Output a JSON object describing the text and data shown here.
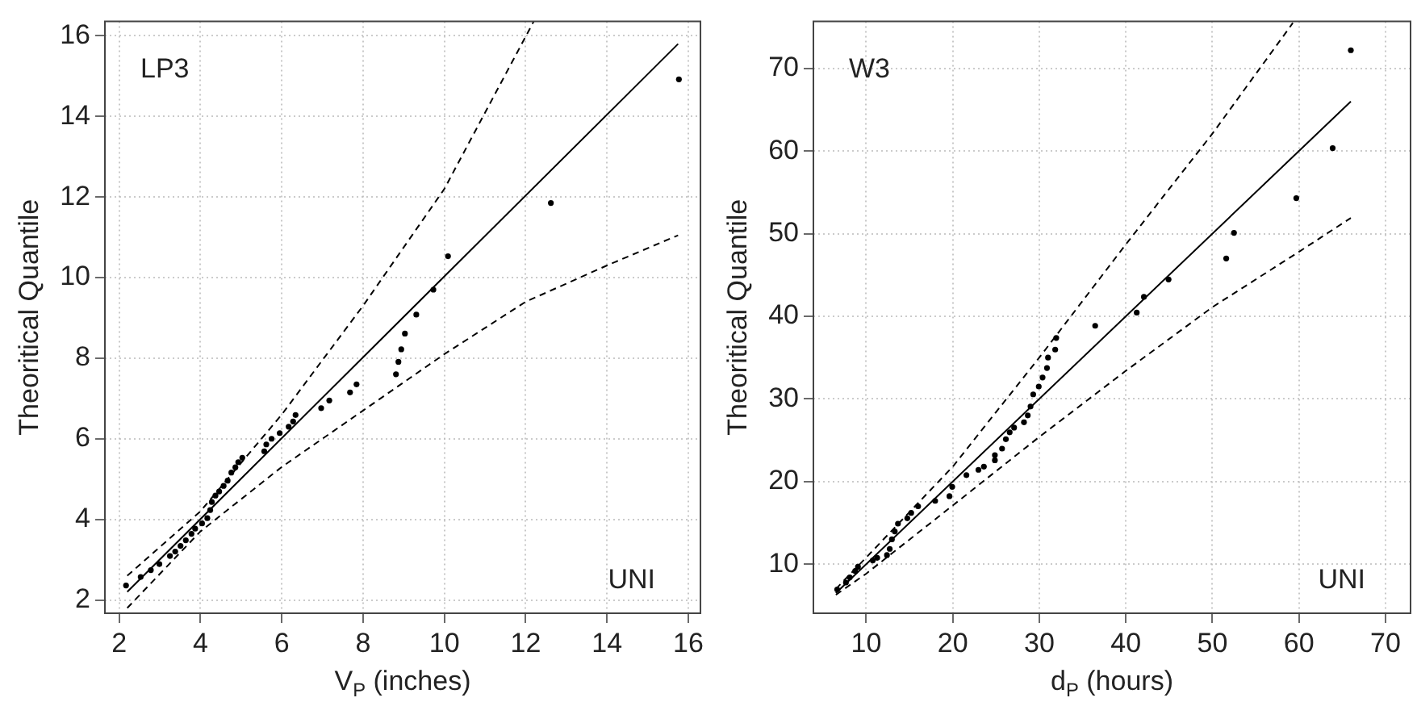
{
  "chart_data": [
    {
      "type": "scatter",
      "xlabel": "V$_{P}$ (inches)",
      "ylabel": "Theoritical Quantile",
      "xlim": [
        1.65,
        16.3
      ],
      "ylim": [
        1.67,
        16.36
      ],
      "xticks": [
        2,
        4,
        6,
        8,
        10,
        12,
        14,
        16
      ],
      "yticks": [
        2,
        4,
        6,
        8,
        10,
        12,
        14,
        16
      ],
      "grid": true,
      "legend": false,
      "annotations": [
        "LP3",
        "UNI"
      ],
      "series": [
        {
          "type": "scatter",
          "color": "#000000",
          "marker": "circle",
          "x": [
            2.17,
            2.53,
            2.78,
            2.99,
            3.25,
            3.38,
            3.51,
            3.64,
            3.78,
            3.87,
            4.04,
            4.17,
            4.24,
            4.28,
            4.37,
            4.46,
            4.57,
            4.67,
            4.76,
            4.86,
            4.93,
            5.03,
            5.57,
            5.62,
            5.75,
            5.95,
            6.17,
            6.28,
            6.34,
            6.97,
            7.17,
            7.68,
            7.84,
            8.81,
            8.87,
            8.94,
            9.03,
            9.31,
            9.73,
            10.09,
            12.62,
            15.77
          ],
          "values": [
            2.36,
            2.57,
            2.74,
            2.89,
            3.09,
            3.2,
            3.34,
            3.48,
            3.64,
            3.77,
            3.9,
            4.03,
            4.23,
            4.43,
            4.59,
            4.69,
            4.83,
            4.96,
            5.16,
            5.29,
            5.42,
            5.53,
            5.69,
            5.86,
            6.0,
            6.14,
            6.3,
            6.43,
            6.59,
            6.76,
            6.95,
            7.15,
            7.35,
            7.6,
            7.91,
            8.22,
            8.61,
            9.08,
            9.7,
            10.53,
            11.85,
            14.92
          ]
        },
        {
          "type": "line",
          "color": "#000000",
          "line_style": "solid",
          "marker": "none",
          "x": [
            2.2,
            15.75
          ],
          "values": [
            2.2,
            15.8
          ]
        },
        {
          "type": "line",
          "color": "#000000",
          "line_style": "dashed",
          "marker": "none",
          "x": [
            2.2,
            4,
            6,
            8,
            10,
            12.2
          ],
          "values": [
            2.6,
            4.2,
            6.6,
            9.3,
            12.2,
            16.36
          ]
        },
        {
          "type": "line",
          "color": "#000000",
          "line_style": "dashed",
          "marker": "none",
          "x": [
            2.2,
            4,
            6,
            8,
            10,
            12,
            14,
            15.75
          ],
          "values": [
            1.8,
            3.7,
            5.3,
            6.7,
            8.1,
            9.4,
            10.3,
            11.05
          ]
        }
      ]
    },
    {
      "type": "scatter",
      "xlabel": "d$_{P}$ (hours)",
      "ylabel": "Theoritical Quantile",
      "xlim": [
        3.9,
        72.9
      ],
      "ylim": [
        4.06,
        75.7
      ],
      "xticks": [
        10,
        20,
        30,
        40,
        50,
        60,
        70
      ],
      "yticks": [
        10,
        20,
        30,
        40,
        50,
        60,
        70
      ],
      "grid": true,
      "legend": false,
      "annotations": [
        "W3",
        "UNI"
      ],
      "series": [
        {
          "type": "scatter",
          "color": "#000000",
          "marker": "circle",
          "x": [
            6.65,
            7.66,
            8.1,
            8.73,
            9.05,
            10.76,
            11.27,
            12.4,
            12.72,
            12.97,
            13.3,
            13.67,
            14.75,
            15.2,
            16.0,
            17.97,
            19.62,
            19.94,
            21.58,
            22.97,
            23.6,
            24.87,
            24.87,
            25.7,
            26.14,
            26.58,
            27.09,
            28.23,
            28.67,
            28.99,
            29.3,
            29.94,
            30.38,
            30.89,
            31.01,
            31.84,
            31.96,
            36.46,
            41.26,
            42.09,
            44.94,
            51.6,
            52.5,
            59.7,
            63.9,
            66.0
          ],
          "values": [
            6.94,
            7.77,
            8.4,
            9.17,
            9.68,
            10.45,
            10.77,
            11.1,
            11.85,
            13.0,
            13.96,
            14.9,
            15.55,
            16.2,
            17.0,
            17.66,
            18.23,
            19.36,
            20.78,
            21.42,
            21.8,
            22.57,
            23.2,
            23.98,
            25.12,
            25.95,
            26.53,
            27.17,
            28.0,
            29.08,
            30.55,
            31.5,
            32.59,
            33.74,
            35.0,
            35.97,
            37.38,
            38.85,
            40.44,
            42.35,
            44.46,
            47.0,
            50.1,
            54.3,
            60.35,
            72.2
          ]
        },
        {
          "type": "line",
          "color": "#000000",
          "line_style": "solid",
          "marker": "none",
          "x": [
            6.5,
            66
          ],
          "values": [
            6.5,
            66
          ]
        },
        {
          "type": "line",
          "color": "#000000",
          "line_style": "dashed",
          "marker": "none",
          "x": [
            6.5,
            10,
            20,
            30,
            40,
            50,
            59.3
          ],
          "values": [
            7,
            10.8,
            21.8,
            35,
            48.7,
            62.1,
            75.5
          ]
        },
        {
          "type": "line",
          "color": "#000000",
          "line_style": "dashed",
          "marker": "none",
          "x": [
            6.5,
            10,
            20,
            30,
            40,
            50,
            60,
            66
          ],
          "values": [
            6.3,
            8.85,
            17.1,
            25.4,
            33.4,
            41.1,
            47.8,
            51.9
          ]
        }
      ]
    }
  ]
}
